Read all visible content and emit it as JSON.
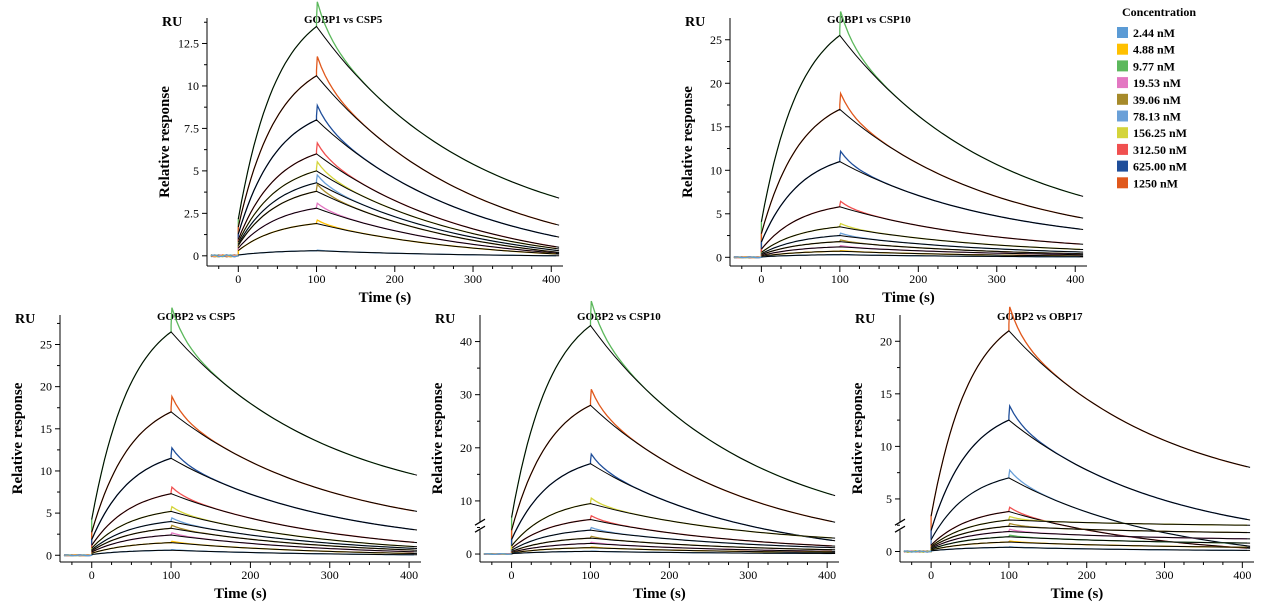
{
  "legend": {
    "title": "Concentration",
    "entries": [
      {
        "label": "2.44 nM",
        "color": "#5b9bd5"
      },
      {
        "label": "4.88 nM",
        "color": "#ffc000"
      },
      {
        "label": "9.77 nM",
        "color": "#5cb85c"
      },
      {
        "label": "19.53 nM",
        "color": "#e377c2"
      },
      {
        "label": "39.06 nM",
        "color": "#a68a2a"
      },
      {
        "label": "78.13 nM",
        "color": "#6aa0d8"
      },
      {
        "label": "156.25 nM",
        "color": "#d4d43a"
      },
      {
        "label": "312.50 nM",
        "color": "#f05050"
      },
      {
        "label": "625.00 nM",
        "color": "#1f4e9a"
      },
      {
        "label": "1250 nM",
        "color": "#e0581c"
      }
    ]
  },
  "chart_data": [
    {
      "type": "line",
      "title": "GOBP1 vs CSP5",
      "xlabel": "Time (s)",
      "ylabel": "Relative response",
      "yunit": "RU",
      "xlim": [
        -40,
        415
      ],
      "ylim": [
        -0.6,
        14.0
      ],
      "xticks": [
        0,
        100,
        200,
        300,
        400
      ],
      "yticks": [
        0,
        2.5,
        5,
        7.5,
        10,
        12.5
      ],
      "ytick_labels": [
        "0",
        "2.5",
        "5",
        "7.5",
        "10",
        "12.5"
      ],
      "axis_break": false,
      "series": [
        {
          "plateau": 13.5,
          "dissociation_end": 3.4,
          "color": "#5cb85c"
        },
        {
          "plateau": 10.6,
          "dissociation_end": 1.8,
          "color": "#e0581c"
        },
        {
          "plateau": 8.0,
          "dissociation_end": 1.1,
          "color": "#1f4e9a"
        },
        {
          "plateau": 6.0,
          "dissociation_end": 0.5,
          "color": "#f05050"
        },
        {
          "plateau": 5.0,
          "dissociation_end": 0.4,
          "color": "#d4d43a"
        },
        {
          "plateau": 4.3,
          "dissociation_end": 0.3,
          "color": "#6aa0d8"
        },
        {
          "plateau": 3.8,
          "dissociation_end": 0.2,
          "color": "#a68a2a"
        },
        {
          "plateau": 2.8,
          "dissociation_end": 0.15,
          "color": "#e377c2"
        },
        {
          "plateau": 1.9,
          "dissociation_end": 0.1,
          "color": "#ffc000"
        },
        {
          "plateau": 0.3,
          "dissociation_end": 0.0,
          "color": "#5b9bd5"
        }
      ]
    },
    {
      "type": "line",
      "title": "GOBP1 vs CSP10",
      "xlabel": "Time (s)",
      "ylabel": "Relative response",
      "yunit": "RU",
      "xlim": [
        -40,
        415
      ],
      "ylim": [
        -1,
        27.5
      ],
      "xticks": [
        0,
        100,
        200,
        300,
        400
      ],
      "yticks": [
        0,
        5,
        10,
        15,
        20,
        25
      ],
      "ytick_labels": [
        "0",
        "5",
        "10",
        "15",
        "20",
        "25"
      ],
      "axis_break": false,
      "series": [
        {
          "plateau": 25.5,
          "dissociation_end": 7.0,
          "color": "#5cb85c"
        },
        {
          "plateau": 17.0,
          "dissociation_end": 4.5,
          "color": "#e0581c"
        },
        {
          "plateau": 11.0,
          "dissociation_end": 3.2,
          "color": "#1f4e9a"
        },
        {
          "plateau": 5.8,
          "dissociation_end": 1.5,
          "color": "#f05050"
        },
        {
          "plateau": 3.5,
          "dissociation_end": 0.9,
          "color": "#d4d43a"
        },
        {
          "plateau": 2.5,
          "dissociation_end": 0.6,
          "color": "#6aa0d8"
        },
        {
          "plateau": 1.8,
          "dissociation_end": 0.4,
          "color": "#a68a2a"
        },
        {
          "plateau": 1.2,
          "dissociation_end": 0.3,
          "color": "#e377c2"
        },
        {
          "plateau": 0.7,
          "dissociation_end": 0.15,
          "color": "#ffc000"
        },
        {
          "plateau": 0.3,
          "dissociation_end": 0.05,
          "color": "#5b9bd5"
        }
      ]
    },
    {
      "type": "line",
      "title": "GOBP2 vs CSP5",
      "xlabel": "Time (s)",
      "ylabel": "Relative response",
      "yunit": "RU",
      "xlim": [
        -40,
        415
      ],
      "ylim": [
        -0.8,
        28.5
      ],
      "xticks": [
        0,
        100,
        200,
        300,
        400
      ],
      "yticks": [
        0,
        5,
        10,
        15,
        20,
        25
      ],
      "ytick_labels": [
        "0",
        "5",
        "10",
        "15",
        "20",
        "25"
      ],
      "axis_break": false,
      "series": [
        {
          "plateau": 26.5,
          "dissociation_end": 9.5,
          "color": "#5cb85c"
        },
        {
          "plateau": 17.0,
          "dissociation_end": 5.2,
          "color": "#e0581c"
        },
        {
          "plateau": 11.5,
          "dissociation_end": 3.0,
          "color": "#1f4e9a"
        },
        {
          "plateau": 7.3,
          "dissociation_end": 1.5,
          "color": "#f05050"
        },
        {
          "plateau": 5.2,
          "dissociation_end": 1.0,
          "color": "#d4d43a"
        },
        {
          "plateau": 4.0,
          "dissociation_end": 0.8,
          "color": "#6aa0d8"
        },
        {
          "plateau": 3.2,
          "dissociation_end": 0.6,
          "color": "#a68a2a"
        },
        {
          "plateau": 2.4,
          "dissociation_end": 0.4,
          "color": "#e377c2"
        },
        {
          "plateau": 1.5,
          "dissociation_end": 0.2,
          "color": "#ffc000"
        },
        {
          "plateau": 0.6,
          "dissociation_end": 0.05,
          "color": "#5b9bd5"
        }
      ]
    },
    {
      "type": "line",
      "title": "GOBP2 vs CSP10",
      "xlabel": "Time (s)",
      "ylabel": "Relative response",
      "yunit": "RU",
      "xlim": [
        -40,
        415
      ],
      "ylim": [
        -1.5,
        45
      ],
      "xticks": [
        0,
        100,
        200,
        300,
        400
      ],
      "yticks": [
        0,
        10,
        20,
        30,
        40
      ],
      "ytick_labels": [
        "0",
        "10",
        "20",
        "30",
        "40"
      ],
      "axis_break": true,
      "series": [
        {
          "plateau": 43.0,
          "dissociation_end": 11.0,
          "color": "#5cb85c"
        },
        {
          "plateau": 28.0,
          "dissociation_end": 6.0,
          "color": "#e0581c"
        },
        {
          "plateau": 17.0,
          "dissociation_end": 2.5,
          "color": "#1f4e9a"
        },
        {
          "plateau": 6.5,
          "dissociation_end": 1.5,
          "color": "#f05050"
        },
        {
          "plateau": 9.5,
          "dissociation_end": 3.0,
          "color": "#d4d43a"
        },
        {
          "plateau": 4.5,
          "dissociation_end": 1.2,
          "color": "#6aa0d8"
        },
        {
          "plateau": 3.0,
          "dissociation_end": 0.8,
          "color": "#a68a2a"
        },
        {
          "plateau": 2.0,
          "dissociation_end": 0.5,
          "color": "#e377c2"
        },
        {
          "plateau": 1.2,
          "dissociation_end": 0.3,
          "color": "#ffc000"
        },
        {
          "plateau": 0.5,
          "dissociation_end": 0.1,
          "color": "#5b9bd5"
        }
      ]
    },
    {
      "type": "line",
      "title": "GOBP2 vs OBP17",
      "xlabel": "Time (s)",
      "ylabel": "Relative response",
      "yunit": "RU",
      "xlim": [
        -40,
        415
      ],
      "ylim": [
        -1,
        22.5
      ],
      "xticks": [
        0,
        100,
        200,
        300,
        400
      ],
      "yticks": [
        0,
        5,
        10,
        15,
        20
      ],
      "ytick_labels": [
        "0",
        "5",
        "10",
        "15",
        "20"
      ],
      "axis_break": true,
      "series": [
        {
          "plateau": 21.0,
          "dissociation_end": 8.0,
          "color": "#e0581c"
        },
        {
          "plateau": 12.5,
          "dissociation_end": 3.0,
          "color": "#1f4e9a"
        },
        {
          "plateau": 7.0,
          "dissociation_end": 0.5,
          "color": "#6aa0d8"
        },
        {
          "plateau": 3.8,
          "dissociation_end": 0.3,
          "color": "#f05050"
        },
        {
          "plateau": 3.0,
          "dissociation_end": 2.5,
          "color": "#d4d43a"
        },
        {
          "plateau": 2.4,
          "dissociation_end": 1.8,
          "color": "#a68a2a"
        },
        {
          "plateau": 1.9,
          "dissociation_end": 1.2,
          "color": "#e377c2"
        },
        {
          "plateau": 1.4,
          "dissociation_end": 0.8,
          "color": "#5cb85c"
        },
        {
          "plateau": 0.9,
          "dissociation_end": 0.4,
          "color": "#ffc000"
        },
        {
          "plateau": 0.4,
          "dissociation_end": 0.1,
          "color": "#5b9bd5"
        }
      ]
    }
  ]
}
